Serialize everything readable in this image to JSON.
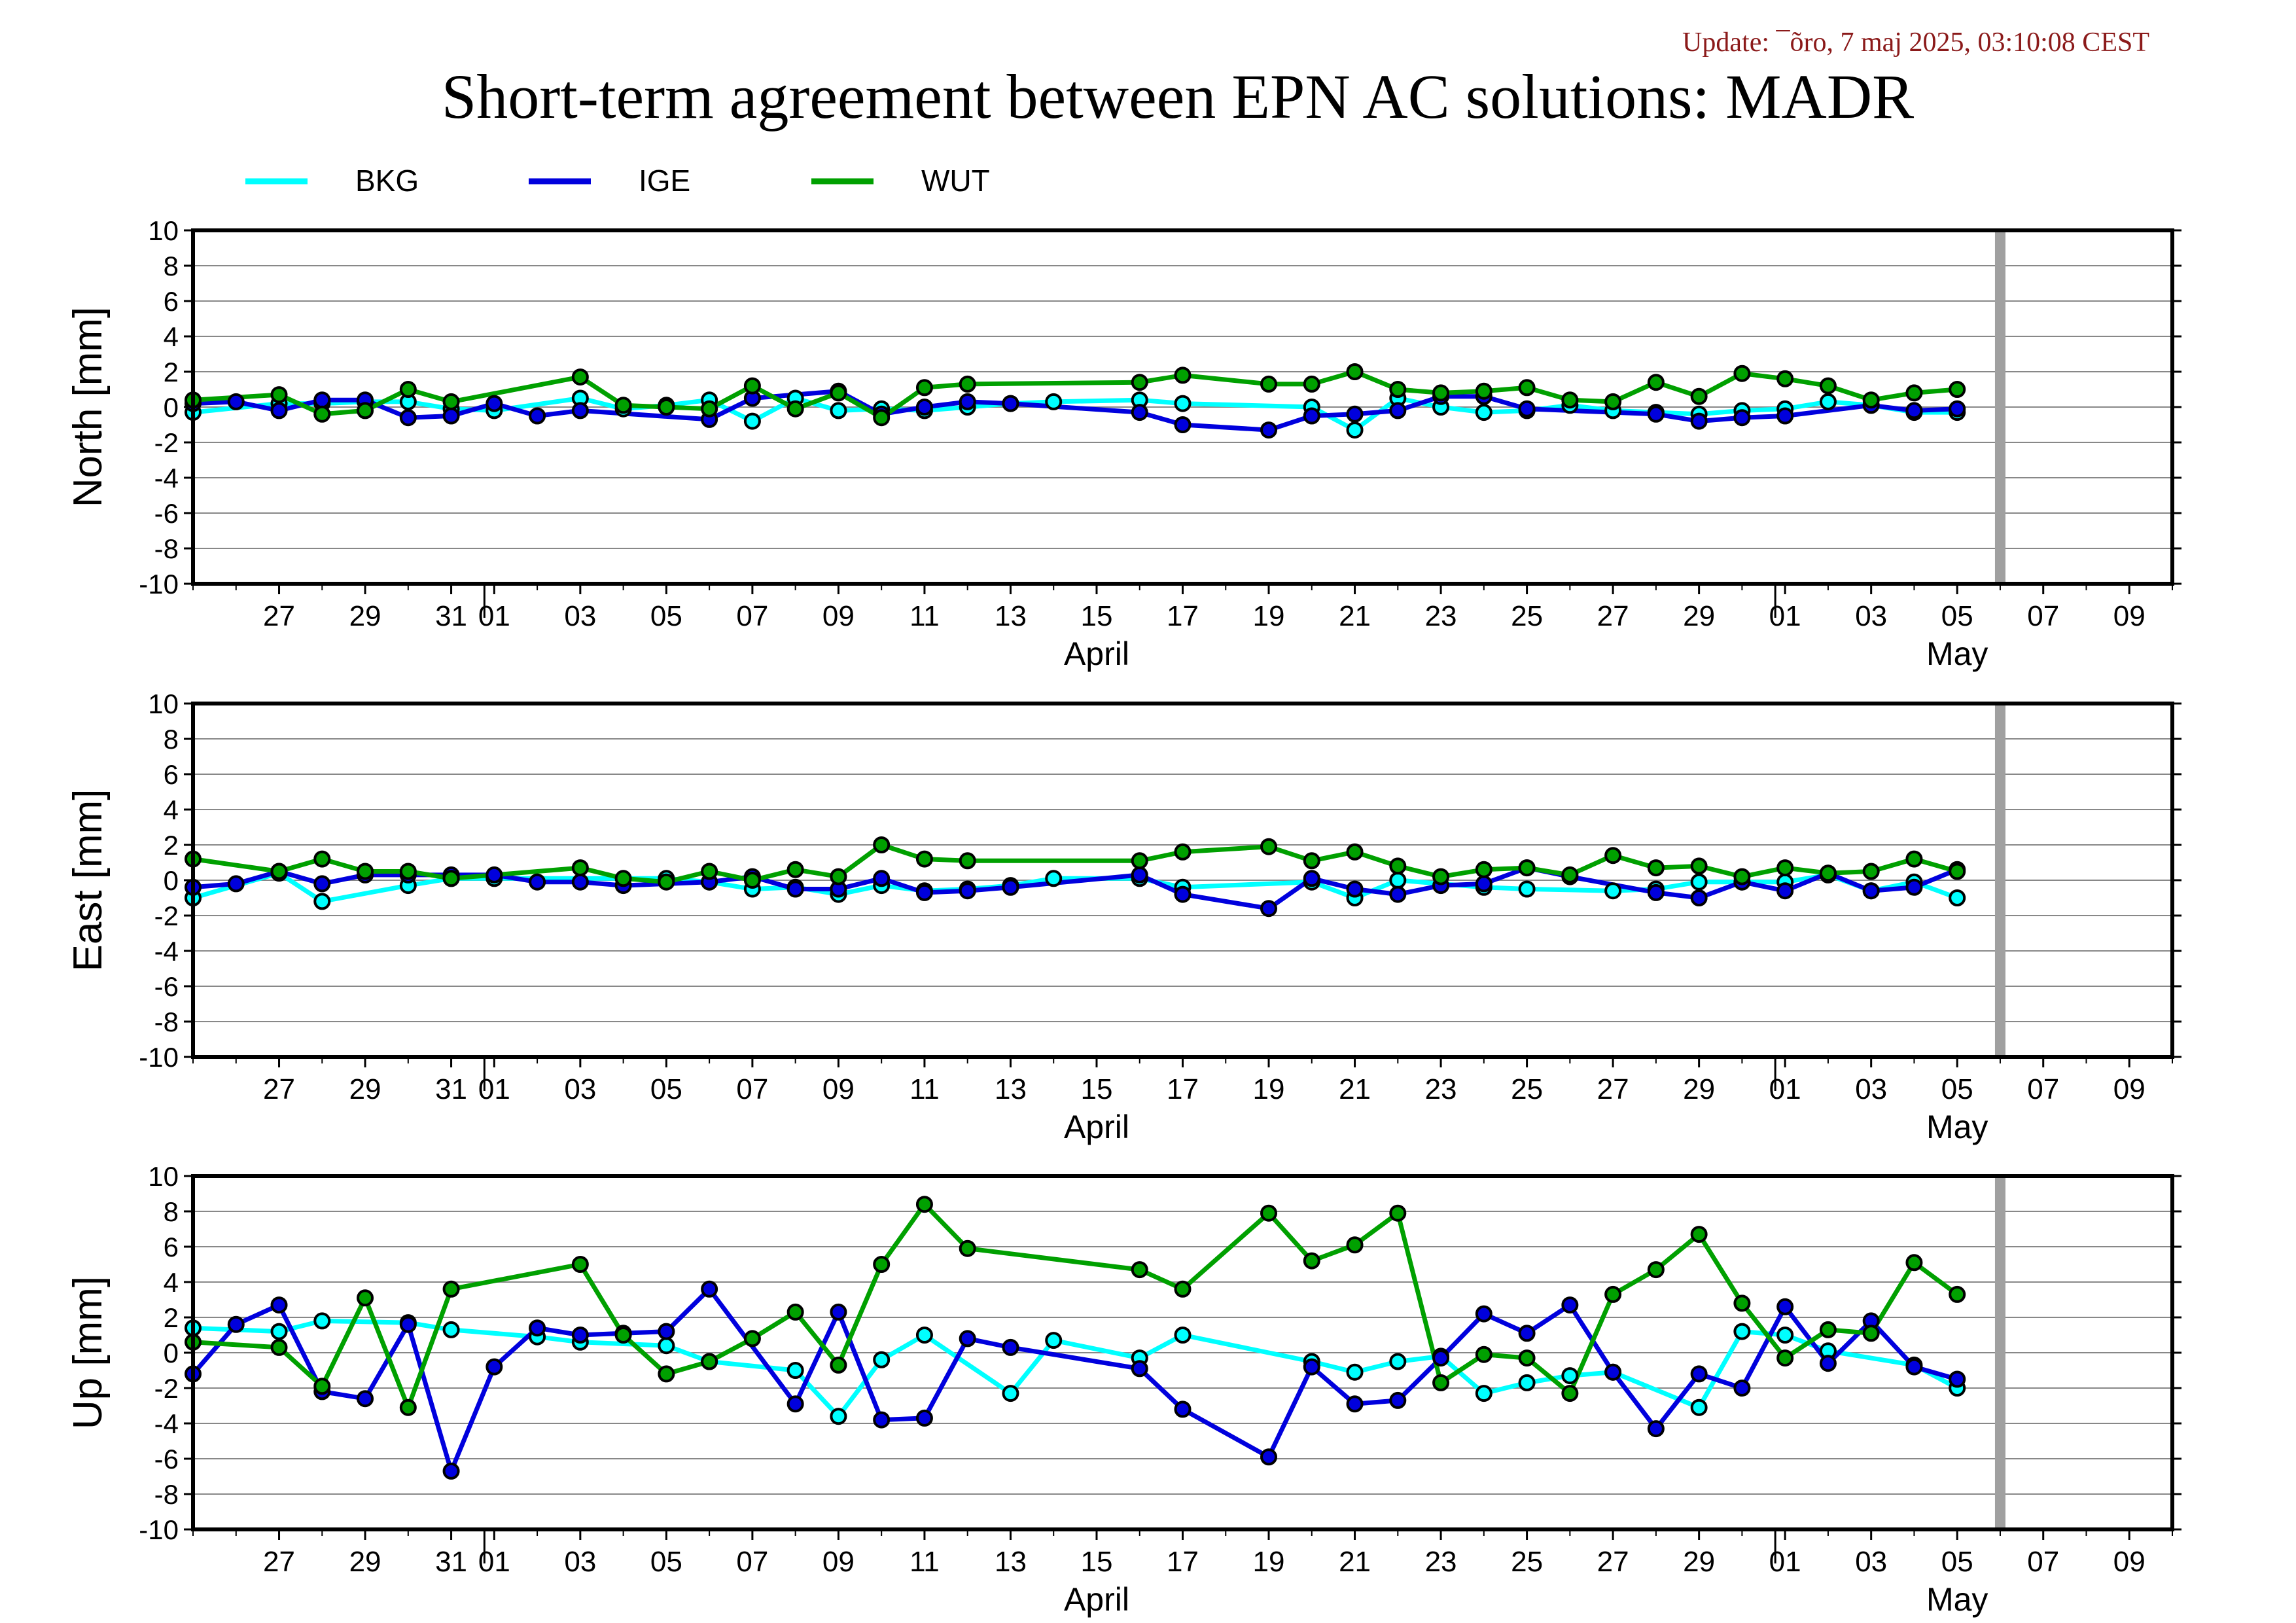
{
  "header": {
    "update": "Update: ¯õro, 7 maj 2025, 03:10:08 CEST",
    "title": "Short-term agreement between EPN AC solutions: MADR"
  },
  "colors": {
    "BKG": "#00ffff",
    "IGE": "#0000dd",
    "WUT": "#00a000",
    "update_text": "#8b1a1a",
    "grid": "#888888",
    "marker_bar": "#a0a0a0"
  },
  "legend": [
    {
      "name": "BKG",
      "color": "#00ffff"
    },
    {
      "name": "IGE",
      "color": "#0000dd"
    },
    {
      "name": "WUT",
      "color": "#00a000"
    }
  ],
  "chart_data": [
    {
      "type": "line",
      "ylabel": "North [mm]",
      "ylim": [
        -10,
        10
      ],
      "yticks": [
        10,
        8,
        6,
        4,
        2,
        0,
        -2,
        -4,
        -6,
        -8,
        -10
      ],
      "xlim": [
        "2025-03-25",
        "2025-05-10"
      ],
      "grid": true,
      "series": [
        {
          "name": "BKG",
          "x": [
            "2025-03-25",
            "2025-03-27",
            "2025-03-28",
            "2025-03-29",
            "2025-03-30",
            "2025-03-31",
            "2025-04-01",
            "2025-04-03",
            "2025-04-04",
            "2025-04-05",
            "2025-04-06",
            "2025-04-07",
            "2025-04-08",
            "2025-04-09",
            "2025-04-10",
            "2025-04-11",
            "2025-04-12",
            "2025-04-13",
            "2025-04-14",
            "2025-04-16",
            "2025-04-17",
            "2025-04-20",
            "2025-04-21",
            "2025-04-22",
            "2025-04-23",
            "2025-04-24",
            "2025-04-25",
            "2025-04-26",
            "2025-04-27",
            "2025-04-28",
            "2025-04-29",
            "2025-04-30",
            "2025-05-01",
            "2025-05-02",
            "2025-05-03",
            "2025-05-04",
            "2025-05-05"
          ],
          "y": [
            -0.3,
            0.2,
            0.2,
            0.3,
            0.3,
            -0.1,
            -0.2,
            0.5,
            -0.1,
            0.1,
            0.4,
            -0.8,
            0.5,
            -0.2,
            -0.1,
            -0.2,
            0.0,
            0.2,
            0.3,
            0.4,
            0.2,
            0.0,
            -1.3,
            0.5,
            0.0,
            -0.3,
            -0.2,
            0.1,
            -0.2,
            -0.3,
            -0.4,
            -0.2,
            -0.1,
            0.3,
            0.1,
            -0.3,
            -0.3
          ]
        },
        {
          "name": "IGE",
          "x": [
            "2025-03-25",
            "2025-03-26",
            "2025-03-27",
            "2025-03-28",
            "2025-03-29",
            "2025-03-30",
            "2025-03-31",
            "2025-04-01",
            "2025-04-02",
            "2025-04-03",
            "2025-04-06",
            "2025-04-07",
            "2025-04-09",
            "2025-04-10",
            "2025-04-11",
            "2025-04-12",
            "2025-04-13",
            "2025-04-16",
            "2025-04-17",
            "2025-04-19",
            "2025-04-20",
            "2025-04-21",
            "2025-04-22",
            "2025-04-23",
            "2025-04-24",
            "2025-04-25",
            "2025-04-28",
            "2025-04-29",
            "2025-04-30",
            "2025-05-01",
            "2025-05-03",
            "2025-05-04",
            "2025-05-05"
          ],
          "y": [
            0.2,
            0.3,
            -0.2,
            0.4,
            0.4,
            -0.6,
            -0.5,
            0.2,
            -0.5,
            -0.2,
            -0.7,
            0.5,
            0.9,
            -0.4,
            0.0,
            0.3,
            0.2,
            -0.3,
            -1.0,
            -1.3,
            -0.5,
            -0.4,
            -0.2,
            0.6,
            0.6,
            -0.1,
            -0.4,
            -0.8,
            -0.6,
            -0.5,
            0.1,
            -0.2,
            -0.1
          ]
        },
        {
          "name": "WUT",
          "x": [
            "2025-03-25",
            "2025-03-27",
            "2025-03-28",
            "2025-03-29",
            "2025-03-30",
            "2025-03-31",
            "2025-04-03",
            "2025-04-04",
            "2025-04-05",
            "2025-04-06",
            "2025-04-07",
            "2025-04-08",
            "2025-04-09",
            "2025-04-10",
            "2025-04-11",
            "2025-04-12",
            "2025-04-16",
            "2025-04-17",
            "2025-04-19",
            "2025-04-20",
            "2025-04-21",
            "2025-04-22",
            "2025-04-23",
            "2025-04-24",
            "2025-04-25",
            "2025-04-26",
            "2025-04-27",
            "2025-04-28",
            "2025-04-29",
            "2025-04-30",
            "2025-05-01",
            "2025-05-02",
            "2025-05-03",
            "2025-05-04",
            "2025-05-05"
          ],
          "y": [
            0.4,
            0.7,
            -0.4,
            -0.2,
            1.0,
            0.3,
            1.7,
            0.1,
            0.0,
            -0.1,
            1.2,
            -0.1,
            0.8,
            -0.6,
            1.1,
            1.3,
            1.4,
            1.8,
            1.3,
            1.3,
            2.0,
            1.0,
            0.8,
            0.9,
            1.1,
            0.4,
            0.3,
            1.4,
            0.6,
            1.9,
            1.6,
            1.2,
            0.4,
            0.8,
            1.0
          ]
        }
      ]
    },
    {
      "type": "line",
      "ylabel": "East [mm]",
      "ylim": [
        -10,
        10
      ],
      "yticks": [
        10,
        8,
        6,
        4,
        2,
        0,
        -2,
        -4,
        -6,
        -8,
        -10
      ],
      "xlim": [
        "2025-03-25",
        "2025-05-10"
      ],
      "grid": true,
      "series": [
        {
          "name": "BKG",
          "x": [
            "2025-03-25",
            "2025-03-27",
            "2025-03-28",
            "2025-03-30",
            "2025-03-31",
            "2025-04-01",
            "2025-04-05",
            "2025-04-06",
            "2025-04-07",
            "2025-04-08",
            "2025-04-09",
            "2025-04-10",
            "2025-04-11",
            "2025-04-12",
            "2025-04-13",
            "2025-04-14",
            "2025-04-16",
            "2025-04-17",
            "2025-04-20",
            "2025-04-21",
            "2025-04-22",
            "2025-04-24",
            "2025-04-25",
            "2025-04-27",
            "2025-04-28",
            "2025-04-29",
            "2025-04-30",
            "2025-05-01",
            "2025-05-02",
            "2025-05-03",
            "2025-05-04",
            "2025-05-05"
          ],
          "y": [
            -1.0,
            0.4,
            -1.2,
            -0.3,
            0.1,
            0.1,
            0.1,
            -0.1,
            -0.5,
            -0.4,
            -0.8,
            -0.3,
            -0.6,
            -0.5,
            -0.3,
            0.1,
            0.1,
            -0.4,
            -0.1,
            -1.0,
            0.0,
            -0.4,
            -0.5,
            -0.6,
            -0.5,
            -0.1,
            -0.1,
            -0.1,
            0.3,
            -0.6,
            -0.1,
            -1.0
          ]
        },
        {
          "name": "IGE",
          "x": [
            "2025-03-25",
            "2025-03-26",
            "2025-03-27",
            "2025-03-28",
            "2025-03-29",
            "2025-03-30",
            "2025-03-31",
            "2025-04-01",
            "2025-04-02",
            "2025-04-03",
            "2025-04-04",
            "2025-04-06",
            "2025-04-07",
            "2025-04-08",
            "2025-04-09",
            "2025-04-10",
            "2025-04-11",
            "2025-04-12",
            "2025-04-13",
            "2025-04-16",
            "2025-04-17",
            "2025-04-19",
            "2025-04-20",
            "2025-04-21",
            "2025-04-22",
            "2025-04-23",
            "2025-04-24",
            "2025-04-25",
            "2025-04-26",
            "2025-04-28",
            "2025-04-29",
            "2025-04-30",
            "2025-05-01",
            "2025-05-02",
            "2025-05-03",
            "2025-05-04",
            "2025-05-05"
          ],
          "y": [
            -0.4,
            -0.2,
            0.5,
            -0.2,
            0.3,
            0.3,
            0.3,
            0.3,
            -0.1,
            -0.1,
            -0.3,
            -0.1,
            0.2,
            -0.5,
            -0.5,
            0.1,
            -0.7,
            -0.6,
            -0.4,
            0.3,
            -0.8,
            -1.6,
            0.1,
            -0.5,
            -0.8,
            -0.3,
            -0.2,
            0.7,
            0.2,
            -0.7,
            -1.0,
            -0.1,
            -0.6,
            0.4,
            -0.6,
            -0.4,
            0.6
          ]
        },
        {
          "name": "WUT",
          "x": [
            "2025-03-25",
            "2025-03-27",
            "2025-03-28",
            "2025-03-29",
            "2025-03-30",
            "2025-03-31",
            "2025-04-03",
            "2025-04-04",
            "2025-04-05",
            "2025-04-06",
            "2025-04-07",
            "2025-04-08",
            "2025-04-09",
            "2025-04-10",
            "2025-04-11",
            "2025-04-12",
            "2025-04-16",
            "2025-04-17",
            "2025-04-19",
            "2025-04-20",
            "2025-04-21",
            "2025-04-22",
            "2025-04-23",
            "2025-04-24",
            "2025-04-25",
            "2025-04-26",
            "2025-04-27",
            "2025-04-28",
            "2025-04-29",
            "2025-04-30",
            "2025-05-01",
            "2025-05-02",
            "2025-05-03",
            "2025-05-04",
            "2025-05-05"
          ],
          "y": [
            1.2,
            0.5,
            1.2,
            0.5,
            0.5,
            0.1,
            0.7,
            0.1,
            -0.1,
            0.5,
            0.0,
            0.6,
            0.2,
            2.0,
            1.2,
            1.1,
            1.1,
            1.6,
            1.9,
            1.1,
            1.6,
            0.8,
            0.2,
            0.6,
            0.7,
            0.3,
            1.4,
            0.7,
            0.8,
            0.2,
            0.7,
            0.4,
            0.5,
            1.2,
            0.5
          ]
        }
      ]
    },
    {
      "type": "line",
      "ylabel": "Up [mm]",
      "ylim": [
        -10,
        10
      ],
      "yticks": [
        10,
        8,
        6,
        4,
        2,
        0,
        -2,
        -4,
        -6,
        -8,
        -10
      ],
      "xlim": [
        "2025-03-25",
        "2025-05-10"
      ],
      "grid": true,
      "series": [
        {
          "name": "BKG",
          "x": [
            "2025-03-25",
            "2025-03-27",
            "2025-03-28",
            "2025-03-30",
            "2025-03-31",
            "2025-04-02",
            "2025-04-03",
            "2025-04-05",
            "2025-04-06",
            "2025-04-08",
            "2025-04-09",
            "2025-04-10",
            "2025-04-11",
            "2025-04-13",
            "2025-04-14",
            "2025-04-16",
            "2025-04-17",
            "2025-04-20",
            "2025-04-21",
            "2025-04-22",
            "2025-04-23",
            "2025-04-24",
            "2025-04-25",
            "2025-04-26",
            "2025-04-27",
            "2025-04-29",
            "2025-04-30",
            "2025-05-01",
            "2025-05-02",
            "2025-05-04",
            "2025-05-05"
          ],
          "y": [
            1.4,
            1.2,
            1.8,
            1.7,
            1.3,
            0.9,
            0.6,
            0.4,
            -0.5,
            -1.0,
            -3.6,
            -0.4,
            1.0,
            -2.3,
            0.7,
            -0.3,
            1.0,
            -0.5,
            -1.1,
            -0.5,
            -0.2,
            -2.3,
            -1.7,
            -1.3,
            -1.1,
            -3.1,
            1.2,
            1.0,
            0.1,
            -0.7,
            -2.0
          ]
        },
        {
          "name": "IGE",
          "x": [
            "2025-03-25",
            "2025-03-26",
            "2025-03-27",
            "2025-03-28",
            "2025-03-29",
            "2025-03-30",
            "2025-03-31",
            "2025-04-01",
            "2025-04-02",
            "2025-04-03",
            "2025-04-04",
            "2025-04-05",
            "2025-04-06",
            "2025-04-08",
            "2025-04-09",
            "2025-04-10",
            "2025-04-11",
            "2025-04-12",
            "2025-04-13",
            "2025-04-16",
            "2025-04-17",
            "2025-04-19",
            "2025-04-20",
            "2025-04-21",
            "2025-04-22",
            "2025-04-23",
            "2025-04-24",
            "2025-04-25",
            "2025-04-26",
            "2025-04-27",
            "2025-04-28",
            "2025-04-29",
            "2025-04-30",
            "2025-05-01",
            "2025-05-02",
            "2025-05-03",
            "2025-05-04",
            "2025-05-05"
          ],
          "y": [
            -1.2,
            1.6,
            2.7,
            -2.2,
            -2.6,
            1.6,
            -6.7,
            -0.8,
            1.4,
            1.0,
            1.1,
            1.2,
            3.6,
            -2.9,
            2.3,
            -3.8,
            -3.7,
            0.8,
            0.3,
            -0.9,
            -3.2,
            -5.9,
            -0.8,
            -2.9,
            -2.7,
            -0.3,
            2.2,
            1.1,
            2.7,
            -1.1,
            -4.3,
            -1.2,
            -2.0,
            2.6,
            -0.6,
            1.8,
            -0.8,
            -1.5
          ]
        },
        {
          "name": "WUT",
          "x": [
            "2025-03-25",
            "2025-03-27",
            "2025-03-28",
            "2025-03-29",
            "2025-03-30",
            "2025-03-31",
            "2025-04-03",
            "2025-04-04",
            "2025-04-05",
            "2025-04-06",
            "2025-04-07",
            "2025-04-08",
            "2025-04-09",
            "2025-04-10",
            "2025-04-11",
            "2025-04-12",
            "2025-04-16",
            "2025-04-17",
            "2025-04-19",
            "2025-04-20",
            "2025-04-21",
            "2025-04-22",
            "2025-04-23",
            "2025-04-24",
            "2025-04-25",
            "2025-04-26",
            "2025-04-27",
            "2025-04-28",
            "2025-04-29",
            "2025-04-30",
            "2025-05-01",
            "2025-05-02",
            "2025-05-03",
            "2025-05-04",
            "2025-05-05"
          ],
          "y": [
            0.6,
            0.3,
            -1.9,
            3.1,
            -3.1,
            3.6,
            5.0,
            1.0,
            -1.2,
            -0.5,
            0.8,
            2.3,
            -0.7,
            5.0,
            8.4,
            5.9,
            4.7,
            3.6,
            7.9,
            5.2,
            6.1,
            7.9,
            -1.7,
            -0.1,
            -0.3,
            -2.3,
            3.3,
            4.7,
            6.7,
            2.8,
            -0.3,
            1.3,
            1.1,
            5.1,
            3.3
          ]
        }
      ]
    }
  ],
  "xaxis": {
    "tick_labels": [
      {
        "date": "2025-03-27",
        "label": "27"
      },
      {
        "date": "2025-03-29",
        "label": "29"
      },
      {
        "date": "2025-03-31",
        "label": "31"
      },
      {
        "date": "2025-04-01",
        "label": "01"
      },
      {
        "date": "2025-04-03",
        "label": "03"
      },
      {
        "date": "2025-04-05",
        "label": "05"
      },
      {
        "date": "2025-04-07",
        "label": "07"
      },
      {
        "date": "2025-04-09",
        "label": "09"
      },
      {
        "date": "2025-04-11",
        "label": "11"
      },
      {
        "date": "2025-04-13",
        "label": "13"
      },
      {
        "date": "2025-04-15",
        "label": "15"
      },
      {
        "date": "2025-04-17",
        "label": "17"
      },
      {
        "date": "2025-04-19",
        "label": "19"
      },
      {
        "date": "2025-04-21",
        "label": "21"
      },
      {
        "date": "2025-04-23",
        "label": "23"
      },
      {
        "date": "2025-04-25",
        "label": "25"
      },
      {
        "date": "2025-04-27",
        "label": "27"
      },
      {
        "date": "2025-04-29",
        "label": "29"
      },
      {
        "date": "2025-05-01",
        "label": "01"
      },
      {
        "date": "2025-05-03",
        "label": "03"
      },
      {
        "date": "2025-05-05",
        "label": "05"
      },
      {
        "date": "2025-05-07",
        "label": "07"
      },
      {
        "date": "2025-05-09",
        "label": "09"
      }
    ],
    "month_labels": [
      {
        "date": "2025-04-15",
        "label": "April"
      },
      {
        "date": "2025-05-05",
        "label": "May"
      }
    ],
    "month_boundaries": [
      "2025-04-01",
      "2025-05-01"
    ],
    "current_day_marker": "2025-05-06"
  }
}
